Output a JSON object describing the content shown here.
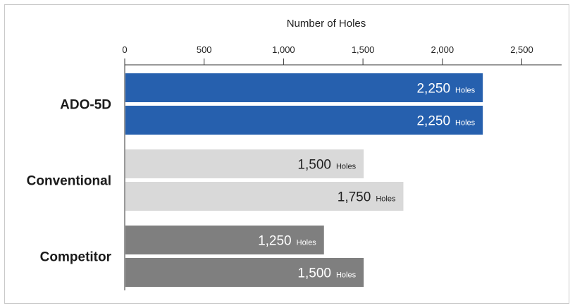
{
  "chart_data": {
    "type": "bar",
    "orientation": "horizontal",
    "xlabel": "Number of Holes",
    "ticks": [
      0,
      500,
      1000,
      1500,
      2000,
      2500
    ],
    "tick_labels": [
      "0",
      "500",
      "1,000",
      "1,500",
      "2,000",
      "2,500"
    ],
    "xlim": [
      0,
      2750
    ],
    "grid": false,
    "unit": "Holes",
    "groups": [
      {
        "category": "ADO-5D",
        "values": [
          2250,
          2250
        ],
        "value_labels": [
          "2,250",
          "2,250"
        ],
        "color": "#2660ae",
        "label_color": "#2660ae",
        "value_color": "#ffffff"
      },
      {
        "category": "Conventional",
        "values": [
          1500,
          1750
        ],
        "value_labels": [
          "1,500",
          "1,750"
        ],
        "color": "#d9d9d9",
        "label_color": "#1a1a1a",
        "value_color": "#222222"
      },
      {
        "category": "Competitor",
        "values": [
          1250,
          1500
        ],
        "value_labels": [
          "1,250",
          "1,500"
        ],
        "color": "#7f7f7f",
        "label_color": "#1a1a1a",
        "value_color": "#ffffff"
      }
    ]
  }
}
